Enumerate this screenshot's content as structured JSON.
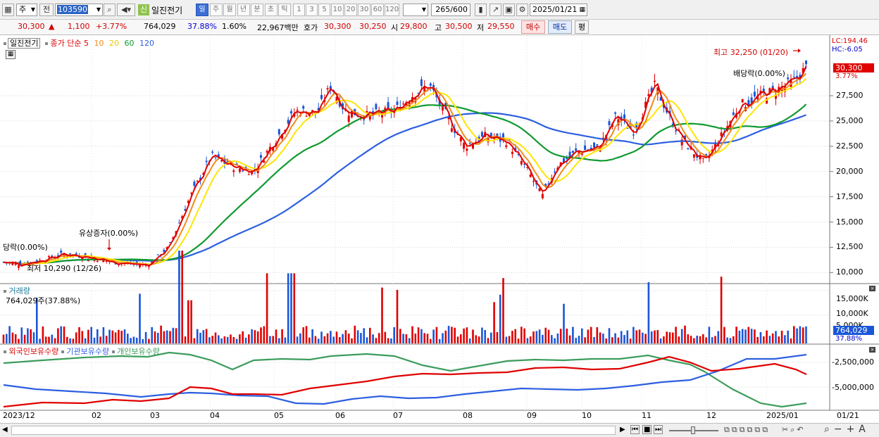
{
  "toolbar": {
    "period_combo": "주",
    "prev_label": "전",
    "code": "103590",
    "credit_badge": "신",
    "stock_name": "일진전기",
    "period_tabs": [
      "일",
      "주",
      "월",
      "년",
      "분",
      "초",
      "틱"
    ],
    "active_tab": "일",
    "interval_buttons": [
      "1",
      "3",
      "5",
      "10",
      "20",
      "30",
      "60",
      "120"
    ],
    "bar_count": "265",
    "bar_max": "/600",
    "date": "2025/01/21"
  },
  "quote": {
    "price": "30,300",
    "arrow": "▲",
    "change": "1,100",
    "change_pct": "+3.77%",
    "volume": "764,029",
    "vol_ratio": "37.88%",
    "turnover_pct": "1.60%",
    "amount": "22,967백만",
    "ask_label": "호가",
    "ask": "30,300",
    "bid": "30,250",
    "open_label": "시",
    "open": "29,800",
    "high_label": "고",
    "high": "30,500",
    "low_label": "저",
    "low": "29,550",
    "buy_label": "매수",
    "sell_label": "매도",
    "eval_label": "평"
  },
  "price_panel": {
    "name_tag": "일진전기",
    "legend_prefix": "종가 단순",
    "ma_periods": [
      "5",
      "10",
      "20",
      "60",
      "120"
    ],
    "lc": "LC:194.46",
    "hc": "HC:-6.05",
    "current_price": "30,300",
    "current_pct": "3.77%",
    "y_ticks": [
      "27,500",
      "25,000",
      "22,500",
      "20,000",
      "17,500",
      "15,000",
      "12,500",
      "10,000"
    ],
    "annotations": {
      "high": "최고 32,250 (01/20)",
      "low": "최저 10,290 (12/26)",
      "dividend_right": "배당락(0.00%)",
      "dividend_left": "당락(0.00%)",
      "rights": "유상증자(0.00%)"
    }
  },
  "volume_panel": {
    "title": "거래량",
    "summary": "764,029주(37.88%)",
    "y_ticks": [
      "15,000K",
      "10,000K"
    ],
    "partial_tick": "5,000K",
    "current": "764,029",
    "current_pct": "37.88%"
  },
  "holdings_panel": {
    "legend": [
      "외국인보유수량",
      "기관보유수량",
      "개인보유수량"
    ],
    "y_ticks": [
      "-2,500,000",
      "-5,000,000"
    ]
  },
  "x_axis": [
    "2023/12",
    "02",
    "03",
    "04",
    "05",
    "06",
    "07",
    "08",
    "09",
    "10",
    "11",
    "12",
    "2025/01",
    "01/21"
  ],
  "colors": {
    "up": "#e00000",
    "down": "#1a56d8",
    "ma5": "#e00000",
    "ma10": "#f08c1c",
    "ma20": "#ffe500",
    "ma60": "#0f9a2f",
    "ma120": "#2c5fe0",
    "foreign": "#e00000",
    "institution": "#2c5fe0",
    "individual": "#3c9c5c"
  }
}
